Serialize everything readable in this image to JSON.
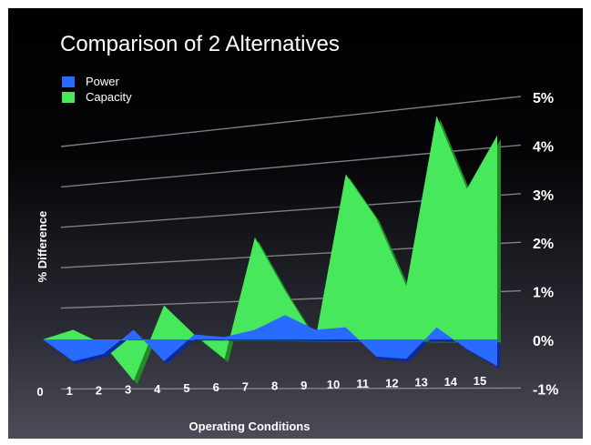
{
  "colors": {
    "power": "#2a6bff",
    "capacity": "#47e85c",
    "capacity_side": "#238a2a",
    "power_side": "#0c2a9a",
    "gridline": "#9a9aa2"
  },
  "chart_data": {
    "type": "area",
    "title": "Comparison of 2 Alternatives",
    "xlabel": "Operating Conditions",
    "ylabel": "% Difference",
    "x": [
      0,
      1,
      2,
      3,
      4,
      5,
      6,
      7,
      8,
      9,
      10,
      11,
      12,
      13,
      14,
      15
    ],
    "x_tick_labels": [
      "0",
      "1",
      "2",
      "3",
      "4",
      "5",
      "6",
      "7",
      "8",
      "9",
      "10",
      "11",
      "12",
      "13",
      "14",
      "15"
    ],
    "y_tick_labels": [
      "-1%",
      "0%",
      "1%",
      "2%",
      "3%",
      "4%",
      "5%"
    ],
    "ylim": [
      -1,
      5
    ],
    "grid": true,
    "legend_position": "top-left",
    "series": [
      {
        "name": "Power",
        "values": [
          0,
          -0.45,
          -0.3,
          0.2,
          -0.45,
          0.1,
          0.05,
          0.2,
          0.5,
          0.2,
          0.25,
          -0.35,
          -0.4,
          0.25,
          -0.2,
          -0.55
        ]
      },
      {
        "name": "Capacity",
        "values": [
          0,
          0.2,
          -0.1,
          -0.85,
          0.7,
          0.1,
          -0.4,
          2.1,
          1.0,
          0.0,
          3.4,
          2.5,
          1.1,
          4.6,
          3.1,
          4.2
        ]
      }
    ]
  }
}
